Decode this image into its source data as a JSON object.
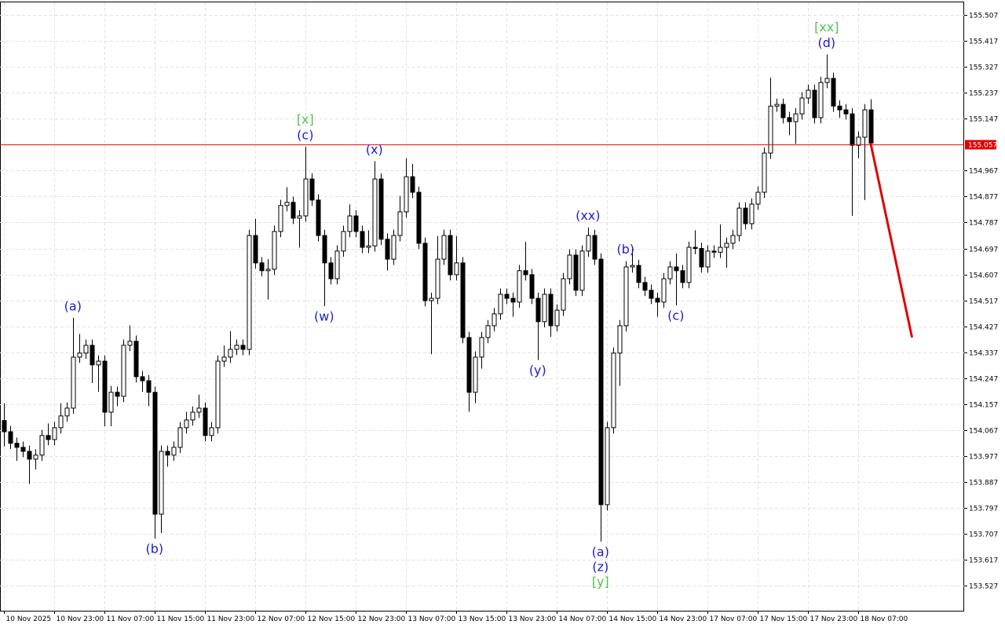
{
  "chart_data": {
    "type": "candlestick",
    "open": [
      154.1,
      154.061,
      154.021,
      154.007,
      153.993,
      153.966,
      153.98,
      154.048,
      154.034,
      154.075,
      154.116,
      154.143,
      154.32,
      154.334,
      154.361,
      154.293,
      154.306,
      154.129,
      154.198,
      154.184,
      154.361,
      154.375,
      154.252,
      154.238,
      154.198,
      153.775,
      153.993,
      153.98,
      154.007,
      154.075,
      154.102,
      154.129,
      154.143,
      154.048,
      154.075,
      154.306,
      154.32,
      154.347,
      154.361,
      154.347,
      154.742,
      154.647,
      154.62,
      154.625,
      154.756,
      154.846,
      154.857,
      154.802,
      154.81,
      154.938,
      154.865,
      154.742,
      154.647,
      154.592,
      154.688,
      154.756,
      154.81,
      154.756,
      154.701,
      154.706,
      154.938,
      154.729,
      154.66,
      154.742,
      154.824,
      154.946,
      154.892,
      154.715,
      154.516,
      154.524,
      154.66,
      154.742,
      154.606,
      154.647,
      154.388,
      154.198,
      154.32,
      154.388,
      154.429,
      154.47,
      154.538,
      154.524,
      154.511,
      154.62,
      154.606,
      154.524,
      154.443,
      154.538,
      154.429,
      154.483,
      154.592,
      154.674,
      154.552,
      154.688,
      154.742,
      154.66,
      153.808,
      154.075,
      154.334,
      154.429,
      154.633,
      154.638,
      154.579,
      154.552,
      154.524,
      154.511,
      154.592,
      154.633,
      154.62,
      154.579,
      154.701,
      154.697,
      154.633,
      154.688,
      154.684,
      154.701,
      154.715,
      154.742,
      154.837,
      154.783,
      154.851,
      154.892,
      155.028,
      155.191,
      155.197,
      155.151,
      155.137,
      155.164,
      155.219,
      155.246,
      155.151,
      155.273,
      155.287,
      155.191,
      155.178,
      155.164,
      155.055,
      155.083,
      155.178
    ],
    "high": [
      154.16,
      154.081,
      154.041,
      154.027,
      154.013,
      154.0,
      154.068,
      154.09,
      154.095,
      154.16,
      154.163,
      154.456,
      154.4,
      154.381,
      154.381,
      154.326,
      154.326,
      154.22,
      154.218,
      154.381,
      154.43,
      154.395,
      154.272,
      154.258,
      154.218,
      154.013,
      154.013,
      154.027,
      154.095,
      154.13,
      154.149,
      154.19,
      154.163,
      154.095,
      154.326,
      154.36,
      154.41,
      154.381,
      154.381,
      154.762,
      154.8,
      154.667,
      154.66,
      154.776,
      154.866,
      154.91,
      154.877,
      154.83,
      155.05,
      154.958,
      154.885,
      154.762,
      154.667,
      154.708,
      154.776,
      154.85,
      154.83,
      154.776,
      154.76,
      155.0,
      154.958,
      154.749,
      154.762,
      154.88,
      155.01,
      154.99,
      154.912,
      154.735,
      154.544,
      154.74,
      154.762,
      154.762,
      154.74,
      154.667,
      154.408,
      154.34,
      154.408,
      154.449,
      154.49,
      154.558,
      154.558,
      154.544,
      154.64,
      154.72,
      154.626,
      154.544,
      154.558,
      154.558,
      154.503,
      154.612,
      154.694,
      154.694,
      154.708,
      154.77,
      154.762,
      154.68,
      154.095,
      154.354,
      154.449,
      154.653,
      154.7,
      154.658,
      154.599,
      154.572,
      154.544,
      154.612,
      154.653,
      154.68,
      154.64,
      154.721,
      154.76,
      154.717,
      154.708,
      154.708,
      154.78,
      154.735,
      154.762,
      154.857,
      154.857,
      154.871,
      154.912,
      155.048,
      155.29,
      155.217,
      155.217,
      155.171,
      155.184,
      155.239,
      155.266,
      155.266,
      155.293,
      155.37,
      155.307,
      155.211,
      155.198,
      155.184,
      155.103,
      155.198,
      155.215
    ],
    "low": [
      154.01,
      154.001,
      153.96,
      153.973,
      153.88,
      153.93,
      153.96,
      154.014,
      154.014,
      154.055,
      154.096,
      154.123,
      154.3,
      154.314,
      154.23,
      154.2,
      154.08,
      154.08,
      154.15,
      154.164,
      154.341,
      154.232,
      154.2,
      154.15,
      153.69,
      153.71,
      153.94,
      153.96,
      153.987,
      154.055,
      154.082,
      154.109,
      154.028,
      154.028,
      154.055,
      154.286,
      154.3,
      154.327,
      154.327,
      154.327,
      154.627,
      154.6,
      154.52,
      154.605,
      154.736,
      154.826,
      154.782,
      154.7,
      154.79,
      154.845,
      154.722,
      154.497,
      154.572,
      154.572,
      154.668,
      154.736,
      154.736,
      154.681,
      154.681,
      154.686,
      154.709,
      154.62,
      154.64,
      154.722,
      154.804,
      154.872,
      154.695,
      154.496,
      154.33,
      154.504,
      154.64,
      154.586,
      154.586,
      154.368,
      154.13,
      154.16,
      154.28,
      154.368,
      154.409,
      154.45,
      154.504,
      154.46,
      154.491,
      154.586,
      154.504,
      154.31,
      154.423,
      154.39,
      154.409,
      154.463,
      154.572,
      154.532,
      154.532,
      154.668,
      154.64,
      153.68,
      153.788,
      154.055,
      154.22,
      154.409,
      154.613,
      154.559,
      154.532,
      154.504,
      154.46,
      154.491,
      154.572,
      154.5,
      154.559,
      154.559,
      154.677,
      154.613,
      154.613,
      154.664,
      154.664,
      154.63,
      154.695,
      154.722,
      154.763,
      154.763,
      154.831,
      154.872,
      155.008,
      155.171,
      155.131,
      155.09,
      155.06,
      155.144,
      155.199,
      155.131,
      155.131,
      155.253,
      155.171,
      155.15,
      155.144,
      154.81,
      155.01,
      154.865,
      155.043
    ],
    "close": [
      154.061,
      154.021,
      154.007,
      153.993,
      153.966,
      153.98,
      154.048,
      154.034,
      154.075,
      154.116,
      154.143,
      154.32,
      154.334,
      154.361,
      154.293,
      154.306,
      154.129,
      154.198,
      154.184,
      154.361,
      154.375,
      154.252,
      154.238,
      154.198,
      153.775,
      153.993,
      153.98,
      154.007,
      154.075,
      154.102,
      154.129,
      154.143,
      154.048,
      154.075,
      154.306,
      154.32,
      154.347,
      154.361,
      154.347,
      154.742,
      154.647,
      154.62,
      154.625,
      154.756,
      154.846,
      154.857,
      154.802,
      154.81,
      154.938,
      154.865,
      154.742,
      154.647,
      154.592,
      154.688,
      154.756,
      154.81,
      154.756,
      154.701,
      154.706,
      154.938,
      154.729,
      154.66,
      154.742,
      154.824,
      154.946,
      154.892,
      154.715,
      154.516,
      154.524,
      154.66,
      154.742,
      154.606,
      154.647,
      154.388,
      154.198,
      154.32,
      154.388,
      154.429,
      154.47,
      154.538,
      154.524,
      154.511,
      154.62,
      154.606,
      154.524,
      154.443,
      154.538,
      154.429,
      154.483,
      154.592,
      154.674,
      154.552,
      154.688,
      154.742,
      154.66,
      153.808,
      154.075,
      154.334,
      154.429,
      154.633,
      154.638,
      154.579,
      154.552,
      154.524,
      154.511,
      154.592,
      154.633,
      154.62,
      154.579,
      154.701,
      154.697,
      154.633,
      154.688,
      154.684,
      154.701,
      154.715,
      154.742,
      154.837,
      154.783,
      154.851,
      154.892,
      155.028,
      155.191,
      155.197,
      155.151,
      155.137,
      155.164,
      155.219,
      155.246,
      155.151,
      155.273,
      155.287,
      155.191,
      155.178,
      155.164,
      155.055,
      155.083,
      155.178,
      155.063
    ],
    "up_color": "#ffffff",
    "down_color": "#000000",
    "edge_color": "#000000",
    "xlim": [
      -0.6,
      152.9
    ],
    "xticks": [
      {
        "value": 0,
        "label": "10 Nov 2025"
      },
      {
        "value": 8,
        "label": "10 Nov 23:00"
      },
      {
        "value": 16,
        "label": "11 Nov 07:00"
      },
      {
        "value": 24,
        "label": "11 Nov 15:00"
      },
      {
        "value": 32,
        "label": "11 Nov 23:00"
      },
      {
        "value": 40,
        "label": "12 Nov 07:00"
      },
      {
        "value": 48,
        "label": "12 Nov 15:00"
      },
      {
        "value": 56,
        "label": "12 Nov 23:00"
      },
      {
        "value": 64,
        "label": "13 Nov 07:00"
      },
      {
        "value": 72,
        "label": "13 Nov 15:00"
      },
      {
        "value": 80,
        "label": "13 Nov 23:00"
      },
      {
        "value": 88,
        "label": "14 Nov 07:00"
      },
      {
        "value": 96,
        "label": "14 Nov 15:00"
      },
      {
        "value": 104,
        "label": "14 Nov 23:00"
      },
      {
        "value": 112,
        "label": "17 Nov 07:00"
      },
      {
        "value": 120,
        "label": "17 Nov 15:00"
      },
      {
        "value": 128,
        "label": "17 Nov 23:00"
      },
      {
        "value": 136,
        "label": "18 Nov 07:00"
      }
    ],
    "ylim": [
      153.44,
      155.551
    ],
    "yticks": [
      155.507,
      155.417,
      155.327,
      155.237,
      155.147,
      154.967,
      154.877,
      154.787,
      154.697,
      154.607,
      154.517,
      154.427,
      154.337,
      154.247,
      154.157,
      154.067,
      153.977,
      153.887,
      153.797,
      153.707,
      153.617,
      153.527
    ],
    "grid": true,
    "price_line": {
      "value": 155.057,
      "color": "#e00000"
    },
    "forecast": {
      "x": [
        138,
        144.6
      ],
      "values": [
        155.063,
        154.388
      ],
      "color": "#e00000"
    },
    "annotations": [
      {
        "text": "(a)",
        "candle": 11,
        "anchor": "high",
        "color": "#1c1cd0"
      },
      {
        "text": "(b)",
        "candle": 24,
        "anchor": "low",
        "color": "#1c1cd0"
      },
      {
        "text": "[x]",
        "candle": 48,
        "anchor": "high",
        "color": "#52c252"
      },
      {
        "text": "(c)",
        "candle": 48,
        "anchor": "high",
        "color": "#1c1cd0"
      },
      {
        "text": "(w)",
        "candle": 51,
        "anchor": "low",
        "color": "#1c1cd0"
      },
      {
        "text": "(x)",
        "candle": 59,
        "anchor": "high",
        "color": "#1c1cd0"
      },
      {
        "text": "(y)",
        "candle": 85,
        "anchor": "low",
        "color": "#1c1cd0"
      },
      {
        "text": "(xx)",
        "candle": 93,
        "anchor": "high",
        "color": "#1c1cd0"
      },
      {
        "text": "(a)",
        "candle": 95,
        "anchor": "low",
        "color": "#1c1cd0"
      },
      {
        "text": "(z)",
        "candle": 95,
        "anchor": "low",
        "color": "#1c1cd0"
      },
      {
        "text": "[y]",
        "candle": 95,
        "anchor": "low",
        "color": "#52c252"
      },
      {
        "text": "(b)",
        "candle": 99,
        "anchor": "high",
        "color": "#1c1cd0"
      },
      {
        "text": "(c)",
        "candle": 107,
        "anchor": "low",
        "color": "#1c1cd0"
      },
      {
        "text": "[xx]",
        "candle": 131,
        "anchor": "high",
        "color": "#52c252"
      },
      {
        "text": "(d)",
        "candle": 131,
        "anchor": "high",
        "color": "#1c1cd0"
      }
    ]
  }
}
